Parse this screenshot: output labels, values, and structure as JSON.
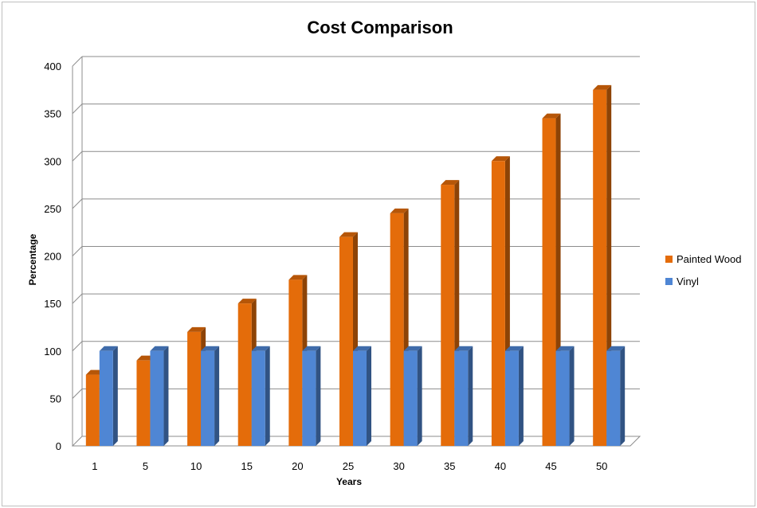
{
  "chart_data": {
    "type": "bar",
    "title": "Cost Comparison",
    "xlabel": "Years",
    "ylabel": "Percentage",
    "categories": [
      "1",
      "5",
      "10",
      "15",
      "20",
      "25",
      "30",
      "35",
      "40",
      "45",
      "50"
    ],
    "series": [
      {
        "name": "Painted Wood",
        "color": "#e46c0a",
        "values": [
          75,
          90,
          120,
          150,
          175,
          220,
          245,
          275,
          300,
          345,
          375
        ]
      },
      {
        "name": "Vinyl",
        "color": "#4f86d4",
        "values": [
          100,
          100,
          100,
          100,
          100,
          100,
          100,
          100,
          100,
          100,
          100
        ]
      }
    ],
    "ylim": [
      0,
      400
    ],
    "yticks": [
      0,
      50,
      100,
      150,
      200,
      250,
      300,
      350,
      400
    ],
    "grid": true,
    "legend": "right"
  }
}
